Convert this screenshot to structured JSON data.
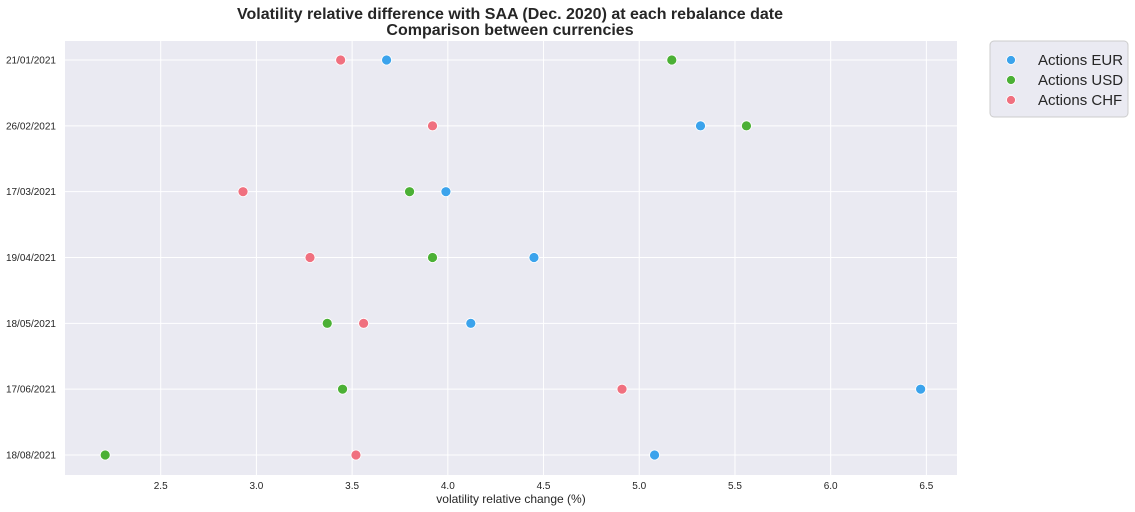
{
  "chart_data": {
    "type": "scatter",
    "title": "Volatility relative difference with SAA (Dec. 2020) at each rebalance date",
    "subtitle": "Comparison between currencies",
    "xlabel": "volatility relative change (%)",
    "ylabel": "",
    "xlim": [
      2.0,
      6.66
    ],
    "xticks": [
      "2.5",
      "3.0",
      "3.5",
      "4.0",
      "4.5",
      "5.0",
      "5.5",
      "6.0",
      "6.5"
    ],
    "categories": [
      "21/01/2021",
      "26/02/2021",
      "17/03/2021",
      "19/04/2021",
      "18/05/2021",
      "17/06/2021",
      "18/08/2021"
    ],
    "grid": true,
    "legend_position": "upper right, outside plot",
    "series": [
      {
        "name": "Actions EUR",
        "color": "#3ba3ec",
        "values": [
          3.68,
          5.32,
          3.99,
          4.45,
          4.12,
          6.47,
          5.08
        ]
      },
      {
        "name": "Actions USD",
        "color": "#4bb035",
        "values": [
          5.17,
          5.56,
          3.8,
          3.92,
          3.37,
          3.45,
          2.21
        ]
      },
      {
        "name": "Actions CHF",
        "color": "#f0707f",
        "values": [
          3.44,
          3.92,
          2.93,
          3.28,
          3.56,
          4.91,
          3.52
        ]
      }
    ]
  }
}
